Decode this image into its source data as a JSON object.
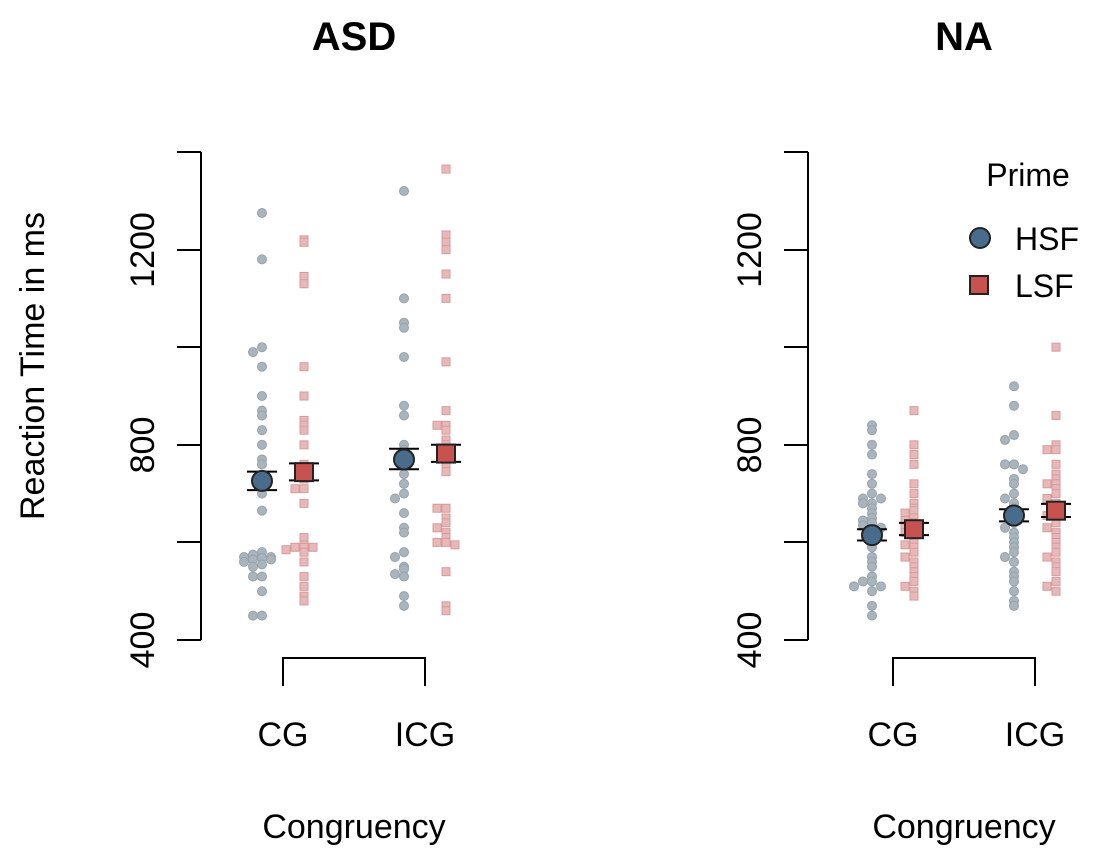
{
  "chart_data": {
    "type": "scatter",
    "ylabel": "Reaction Time in ms",
    "xlabel": "Congruency",
    "ylim": [
      400,
      1400
    ],
    "yticks": [
      400,
      800,
      1200
    ],
    "categories": [
      "CG",
      "ICG"
    ],
    "legend": {
      "title": "Prime",
      "position": "top-right",
      "entries": [
        {
          "name": "HSF",
          "marker": "circle",
          "color": "#4a6c8c"
        },
        {
          "name": "LSF",
          "marker": "square",
          "color": "#c8524f"
        }
      ]
    },
    "raw_colors": {
      "HSF": "#a9b4bc",
      "LSF": "#e8b8b8"
    },
    "panels": [
      {
        "title": "ASD",
        "means": {
          "HSF": [
            {
              "category": "CG",
              "mean": 726,
              "se_low": 707,
              "se_high": 745
            },
            {
              "category": "ICG",
              "mean": 770,
              "se_low": 750,
              "se_high": 792
            }
          ],
          "LSF": [
            {
              "category": "CG",
              "mean": 744,
              "se_low": 727,
              "se_high": 762
            },
            {
              "category": "ICG",
              "mean": 782,
              "se_low": 765,
              "se_high": 800
            }
          ]
        },
        "points": {
          "HSF": {
            "CG": [
              1275,
              1180,
              1000,
              990,
              960,
              900,
              870,
              860,
              830,
              800,
              770,
              760,
              720,
              700,
              665,
              580,
              575,
              570,
              570,
              568,
              565,
              565,
              560,
              555,
              550,
              530,
              530,
              500,
              450,
              450
            ],
            "ICG": [
              1320,
              1100,
              1050,
              1040,
              980,
              880,
              860,
              800,
              790,
              770,
              760,
              740,
              720,
              700,
              690,
              660,
              630,
              620,
              580,
              570,
              550,
              545,
              535,
              530,
              490,
              470
            ]
          },
          "LSF": {
            "CG": [
              1220,
              1215,
              1145,
              1130,
              960,
              900,
              850,
              840,
              830,
              800,
              760,
              740,
              730,
              710,
              710,
              680,
              610,
              595,
              590,
              590,
              590,
              585,
              580,
              560,
              530,
              510,
              490,
              480
            ],
            "ICG": [
              1365,
              1230,
              1215,
              1200,
              1150,
              1100,
              970,
              870,
              840,
              840,
              830,
              810,
              800,
              790,
              760,
              745,
              670,
              670,
              650,
              640,
              630,
              620,
              610,
              600,
              600,
              595,
              540,
              470,
              460
            ]
          }
        }
      },
      {
        "title": "NA",
        "means": {
          "HSF": [
            {
              "category": "CG",
              "mean": 615,
              "se_low": 604,
              "se_high": 627
            },
            {
              "category": "ICG",
              "mean": 655,
              "se_low": 643,
              "se_high": 668
            }
          ],
          "LSF": [
            {
              "category": "CG",
              "mean": 627,
              "se_low": 615,
              "se_high": 640
            },
            {
              "category": "ICG",
              "mean": 665,
              "se_low": 652,
              "se_high": 679
            }
          ]
        },
        "points": {
          "HSF": {
            "CG": [
              840,
              830,
              800,
              780,
              740,
              720,
              700,
              690,
              690,
              680,
              680,
              670,
              660,
              650,
              645,
              640,
              635,
              630,
              620,
              610,
              600,
              590,
              570,
              560,
              550,
              530,
              520,
              520,
              510,
              510,
              500,
              470,
              450
            ],
            "ICG": [
              920,
              880,
              820,
              810,
              760,
              760,
              750,
              730,
              720,
              700,
              690,
              680,
              670,
              660,
              650,
              640,
              630,
              620,
              610,
              600,
              590,
              580,
              570,
              560,
              540,
              530,
              520,
              500,
              480,
              470
            ]
          },
          "LSF": {
            "CG": [
              870,
              800,
              780,
              760,
              720,
              700,
              680,
              670,
              665,
              660,
              650,
              645,
              640,
              630,
              625,
              620,
              610,
              600,
              595,
              590,
              580,
              570,
              560,
              550,
              540,
              530,
              520,
              510,
              500,
              490
            ],
            "ICG": [
              1000,
              860,
              800,
              790,
              790,
              760,
              740,
              730,
              720,
              720,
              710,
              700,
              690,
              680,
              670,
              660,
              655,
              650,
              640,
              630,
              620,
              610,
              600,
              590,
              580,
              570,
              560,
              550,
              540,
              520,
              510,
              500
            ]
          }
        }
      }
    ]
  }
}
